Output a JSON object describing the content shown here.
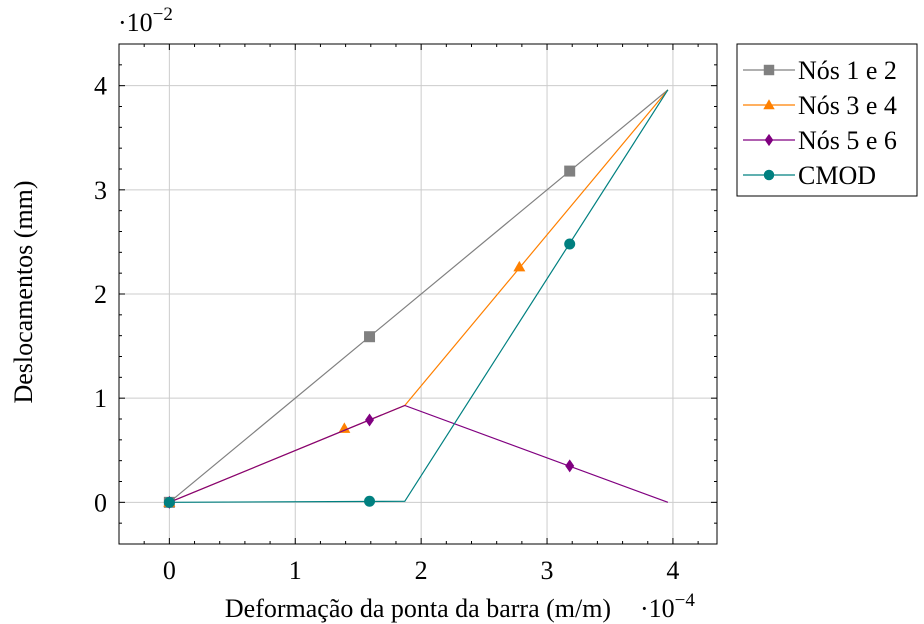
{
  "chart_data": {
    "type": "line",
    "xlabel": "Deformação da ponta da barra (m/m)",
    "ylabel": "Deslocamentos (mm)",
    "x_scale_label": "·10",
    "x_scale_exp": "−4",
    "y_scale_label": "·10",
    "y_scale_exp": "−2",
    "xlim": [
      -0.4,
      4.35
    ],
    "ylim": [
      -0.4,
      4.4
    ],
    "xticks": [
      0,
      1,
      2,
      3,
      4
    ],
    "yticks": [
      0,
      1,
      2,
      3,
      4
    ],
    "xtick_labels": [
      "0",
      "1",
      "2",
      "3",
      "4"
    ],
    "ytick_labels": [
      "0",
      "1",
      "2",
      "3",
      "4"
    ],
    "grid": true,
    "legend_position": "outside-right-top",
    "series": [
      {
        "name": "Nós 1 e 2",
        "color": "#808080",
        "marker": "square",
        "x": [
          0,
          3.96
        ],
        "y": [
          0,
          3.96
        ],
        "marker_points": [
          [
            0,
            0
          ],
          [
            1.59,
            1.59
          ],
          [
            3.18,
            3.18
          ]
        ]
      },
      {
        "name": "Nós 3 e 4",
        "color": "#ff8000",
        "marker": "triangle",
        "x": [
          0,
          1.87,
          3.96
        ],
        "y": [
          0,
          0.93,
          3.96
        ],
        "marker_points": [
          [
            0,
            0
          ],
          [
            1.39,
            0.71
          ],
          [
            2.78,
            2.26
          ]
        ]
      },
      {
        "name": "Nós 5 e 6",
        "color": "#800080",
        "marker": "diamond",
        "x": [
          0,
          1.87,
          3.96
        ],
        "y": [
          0,
          0.93,
          0
        ],
        "marker_points": [
          [
            0,
            0
          ],
          [
            1.59,
            0.79
          ],
          [
            3.18,
            0.35
          ]
        ]
      },
      {
        "name": "CMOD",
        "color": "#008080",
        "marker": "circle",
        "x": [
          0,
          1.87,
          3.96
        ],
        "y": [
          0,
          0.01,
          3.96
        ],
        "marker_points": [
          [
            0,
            0
          ],
          [
            1.59,
            0.01
          ],
          [
            3.18,
            2.48
          ]
        ]
      }
    ]
  }
}
